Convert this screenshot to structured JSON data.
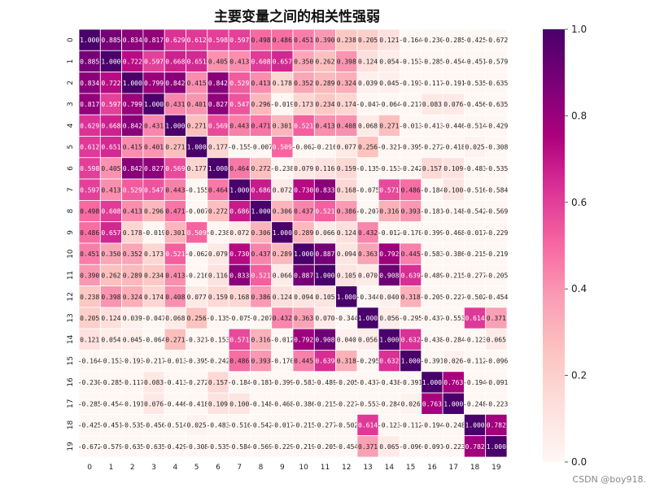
{
  "chart_data": {
    "type": "heatmap",
    "title": "主要变量之间的相关性强弱",
    "row_labels": [
      "0",
      "1",
      "2",
      "3",
      "4",
      "5",
      "6",
      "7",
      "8",
      "9",
      "10",
      "11",
      "12",
      "13",
      "14",
      "15",
      "16",
      "17",
      "18",
      "19"
    ],
    "col_labels": [
      "0",
      "1",
      "2",
      "3",
      "4",
      "5",
      "6",
      "7",
      "8",
      "9",
      "10",
      "11",
      "12",
      "13",
      "14",
      "15",
      "16",
      "17",
      "18",
      "19"
    ],
    "values": [
      [
        1.0,
        0.885,
        0.834,
        0.817,
        0.629,
        0.612,
        0.598,
        0.597,
        0.498,
        0.486,
        0.451,
        0.39,
        0.238,
        0.205,
        0.121,
        -0.164,
        -0.23,
        -0.285,
        -0.425,
        -0.672
      ],
      [
        0.885,
        1.0,
        0.722,
        0.597,
        0.668,
        0.651,
        0.405,
        0.413,
        0.608,
        0.657,
        0.35,
        0.262,
        0.398,
        0.124,
        0.054,
        -0.153,
        -0.285,
        -0.454,
        -0.451,
        -0.579
      ],
      [
        0.834,
        0.722,
        1.0,
        0.799,
        0.842,
        0.415,
        0.842,
        0.529,
        0.413,
        0.178,
        0.352,
        0.289,
        0.324,
        0.039,
        0.045,
        -0.193,
        -0.117,
        -0.191,
        -0.535,
        -0.635
      ],
      [
        0.817,
        0.597,
        0.799,
        1.0,
        0.431,
        0.401,
        0.827,
        0.547,
        0.296,
        -0.019,
        0.173,
        0.234,
        0.174,
        -0.047,
        -0.064,
        -0.217,
        0.083,
        0.076,
        -0.456,
        -0.635
      ],
      [
        0.629,
        0.668,
        0.842,
        0.431,
        1.0,
        0.271,
        0.569,
        0.443,
        0.471,
        0.301,
        0.521,
        0.413,
        0.408,
        0.068,
        0.271,
        -0.013,
        -0.413,
        -0.446,
        -0.514,
        -0.429
      ],
      [
        0.612,
        0.651,
        0.415,
        0.401,
        0.271,
        1.0,
        0.177,
        -0.155,
        -0.007,
        0.509,
        -0.062,
        -0.216,
        0.077,
        0.256,
        -0.321,
        -0.395,
        -0.272,
        -0.418,
        0.025,
        -0.308
      ],
      [
        0.598,
        0.405,
        0.842,
        0.827,
        0.569,
        0.177,
        1.0,
        0.464,
        0.272,
        -0.238,
        0.079,
        0.116,
        0.159,
        -0.135,
        -0.153,
        -0.242,
        0.157,
        0.109,
        -0.483,
        -0.535
      ],
      [
        0.597,
        0.413,
        0.529,
        0.547,
        0.443,
        -0.155,
        0.464,
        1.0,
        0.686,
        0.072,
        0.73,
        0.833,
        0.168,
        -0.075,
        0.571,
        0.486,
        -0.184,
        0.1,
        -0.516,
        -0.584
      ],
      [
        0.498,
        0.608,
        0.413,
        0.296,
        0.471,
        -0.007,
        0.272,
        0.686,
        1.0,
        0.306,
        0.437,
        0.521,
        0.386,
        -0.207,
        0.316,
        0.393,
        -0.181,
        -0.148,
        -0.542,
        -0.569
      ],
      [
        0.486,
        0.657,
        0.178,
        -0.019,
        0.301,
        0.509,
        -0.238,
        0.072,
        0.306,
        1.0,
        0.289,
        0.066,
        0.124,
        0.432,
        -0.012,
        -0.17,
        -0.399,
        -0.468,
        -0.017,
        -0.229
      ],
      [
        0.451,
        0.35,
        0.352,
        0.173,
        0.521,
        -0.062,
        0.079,
        0.73,
        0.437,
        0.289,
        1.0,
        0.887,
        0.094,
        0.363,
        0.792,
        0.445,
        -0.583,
        -0.386,
        -0.215,
        -0.219
      ],
      [
        0.39,
        0.262,
        0.289,
        0.234,
        0.413,
        -0.216,
        0.116,
        0.833,
        0.521,
        0.066,
        0.887,
        1.0,
        0.105,
        0.07,
        0.908,
        0.639,
        -0.489,
        -0.215,
        -0.277,
        -0.205
      ],
      [
        0.238,
        0.398,
        0.324,
        0.174,
        0.408,
        0.077,
        0.159,
        0.168,
        0.386,
        0.124,
        0.094,
        0.105,
        1.0,
        -0.344,
        0.04,
        0.318,
        -0.205,
        -0.227,
        -0.502,
        -0.454
      ],
      [
        0.205,
        0.124,
        0.039,
        -0.047,
        0.068,
        0.256,
        -0.135,
        -0.075,
        -0.207,
        0.432,
        0.363,
        0.07,
        -0.344,
        1.0,
        0.056,
        -0.295,
        -0.437,
        -0.553,
        0.614,
        0.371
      ],
      [
        0.121,
        0.054,
        0.045,
        -0.064,
        0.271,
        -0.321,
        -0.153,
        0.571,
        0.316,
        -0.012,
        0.792,
        0.908,
        0.04,
        0.056,
        1.0,
        0.632,
        -0.438,
        -0.284,
        -0.123,
        0.065
      ],
      [
        -0.164,
        -0.153,
        -0.193,
        -0.217,
        -0.013,
        -0.395,
        -0.242,
        0.486,
        0.393,
        -0.17,
        0.445,
        0.639,
        0.318,
        -0.295,
        0.632,
        1.0,
        -0.391,
        0.026,
        -0.112,
        -0.096
      ],
      [
        -0.23,
        -0.285,
        -0.117,
        0.083,
        -0.413,
        -0.272,
        0.157,
        -0.184,
        -0.181,
        -0.399,
        -0.583,
        -0.489,
        -0.205,
        -0.437,
        -0.438,
        -0.391,
        1.0,
        0.763,
        -0.194,
        -0.091
      ],
      [
        -0.285,
        -0.454,
        -0.191,
        0.076,
        -0.446,
        -0.418,
        0.109,
        0.1,
        -0.148,
        -0.468,
        -0.386,
        -0.215,
        -0.227,
        -0.553,
        -0.284,
        0.026,
        0.763,
        1.0,
        -0.248,
        -0.223
      ],
      [
        -0.425,
        -0.451,
        -0.535,
        -0.456,
        -0.514,
        0.025,
        -0.483,
        -0.516,
        -0.542,
        -0.017,
        -0.215,
        -0.277,
        -0.502,
        0.614,
        -0.123,
        -0.112,
        -0.194,
        -0.248,
        1.0,
        0.782
      ],
      [
        -0.672,
        -0.579,
        -0.635,
        -0.635,
        -0.429,
        -0.308,
        -0.535,
        -0.584,
        -0.569,
        -0.229,
        -0.219,
        -0.205,
        -0.454,
        0.371,
        0.065,
        -0.096,
        -0.091,
        -0.223,
        0.782,
        1.0
      ]
    ],
    "vmin": 0.0,
    "vmax": 1.0,
    "colormap": "RdPu",
    "colormap_stops": [
      "#fff7f3",
      "#fde0dd",
      "#fcc5c0",
      "#fa9fb5",
      "#f768a1",
      "#dd3497",
      "#ae017e",
      "#7a0177",
      "#49006a"
    ],
    "colorbar_ticks": [
      "0.0",
      "0.2",
      "0.4",
      "0.6",
      "0.8",
      "1.0"
    ],
    "annotation_format": "3 decimals",
    "grid_line_color": "#ffffff"
  },
  "watermark": "CSDN @boy918."
}
